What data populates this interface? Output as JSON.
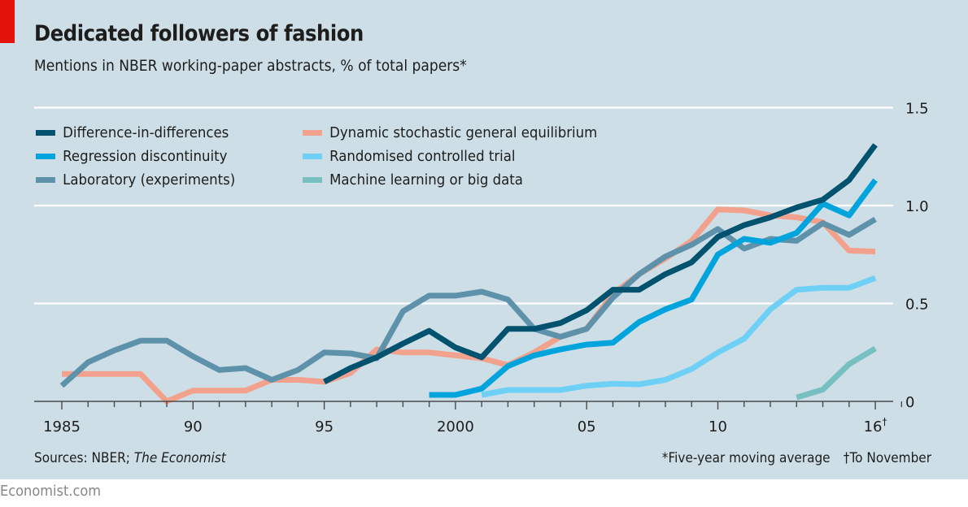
{
  "header": {
    "title": "Dedicated followers of fashion",
    "subtitle": "Mentions in NBER working-paper abstracts, % of total papers*"
  },
  "footer": {
    "source_prefix": "Sources: NBER; ",
    "source_italic": "The Economist",
    "note_1": "*Five-year moving average",
    "note_2": "†To November",
    "brand": "Economist.com"
  },
  "colors": {
    "background": "#cedee7",
    "accent_red": "#e3120b",
    "gridline": "#ffffff",
    "axis": "#4a4a4a"
  },
  "chart_data": {
    "type": "line",
    "title": "Dedicated followers of fashion",
    "subtitle": "Mentions in NBER working-paper abstracts, % of total papers*",
    "xlabel": "",
    "ylabel": "% of total papers",
    "xlim": [
      1984.5,
      2017.5
    ],
    "ylim": [
      0,
      1.5
    ],
    "y_ticks": [
      0,
      0.5,
      1.0,
      1.5
    ],
    "y_tick_labels": [
      "0",
      "0.5",
      "1.0",
      "1.5"
    ],
    "y_axis_side": "right",
    "x_ticks_labeled": [
      1985,
      1990,
      1995,
      2000,
      2005,
      2010,
      2016
    ],
    "x_tick_labels": [
      "1985",
      "90",
      "95",
      "2000",
      "05",
      "10",
      "16†"
    ],
    "grid": true,
    "legend_position": "top-left",
    "series": [
      {
        "name": "Difference-in-differences",
        "color": "#00526e",
        "x": [
          1995,
          1996,
          1997,
          1998,
          1999,
          2000,
          2001,
          2002,
          2003,
          2004,
          2005,
          2006,
          2007,
          2008,
          2009,
          2010,
          2011,
          2012,
          2013,
          2014,
          2015,
          2016
        ],
        "values": [
          0.1,
          0.17,
          0.225,
          0.295,
          0.36,
          0.275,
          0.225,
          0.37,
          0.37,
          0.4,
          0.465,
          0.57,
          0.57,
          0.65,
          0.71,
          0.84,
          0.9,
          0.94,
          0.99,
          1.03,
          1.13,
          1.31
        ]
      },
      {
        "name": "Regression discontinuity",
        "color": "#00a4dc",
        "x": [
          1999,
          2000,
          2001,
          2002,
          2003,
          2004,
          2005,
          2006,
          2007,
          2008,
          2009,
          2010,
          2011,
          2012,
          2013,
          2014,
          2015,
          2016
        ],
        "values": [
          0.033,
          0.033,
          0.065,
          0.18,
          0.235,
          0.265,
          0.29,
          0.3,
          0.405,
          0.47,
          0.52,
          0.75,
          0.83,
          0.81,
          0.86,
          1.01,
          0.95,
          1.13
        ]
      },
      {
        "name": "Laboratory (experiments)",
        "color": "#5e92aa",
        "x": [
          1985,
          1986,
          1987,
          1988,
          1989,
          1990,
          1991,
          1992,
          1993,
          1994,
          1995,
          1996,
          1997,
          1998,
          1999,
          2000,
          2001,
          2002,
          2003,
          2004,
          2005,
          2006,
          2007,
          2008,
          2009,
          2010,
          2011,
          2012,
          2013,
          2014,
          2015,
          2016
        ],
        "values": [
          0.08,
          0.2,
          0.26,
          0.31,
          0.31,
          0.23,
          0.16,
          0.17,
          0.11,
          0.16,
          0.25,
          0.245,
          0.22,
          0.46,
          0.54,
          0.54,
          0.56,
          0.52,
          0.37,
          0.33,
          0.37,
          0.53,
          0.65,
          0.74,
          0.8,
          0.88,
          0.78,
          0.83,
          0.82,
          0.91,
          0.85,
          0.93
        ]
      },
      {
        "name": "Dynamic stochastic general equilibrium",
        "color": "#f2a28c",
        "x": [
          1985,
          1986,
          1987,
          1988,
          1989,
          1990,
          1991,
          1992,
          1993,
          1994,
          1995,
          1996,
          1997,
          1998,
          1999,
          2000,
          2001,
          2002,
          2003,
          2004,
          2005,
          2006,
          2007,
          2008,
          2009,
          2010,
          2011,
          2012,
          2013,
          2014,
          2015,
          2016
        ],
        "values": [
          0.14,
          0.14,
          0.14,
          0.14,
          0.0,
          0.055,
          0.055,
          0.055,
          0.11,
          0.11,
          0.1,
          0.145,
          0.265,
          0.25,
          0.25,
          0.235,
          0.22,
          0.185,
          0.25,
          0.33,
          0.37,
          0.55,
          0.65,
          0.73,
          0.82,
          0.98,
          0.975,
          0.95,
          0.94,
          0.915,
          0.77,
          0.765
        ]
      },
      {
        "name": "Randomised controlled trial",
        "color": "#6fd0f6",
        "x": [
          2001,
          2002,
          2003,
          2004,
          2005,
          2006,
          2007,
          2008,
          2009,
          2010,
          2011,
          2012,
          2013,
          2014,
          2015,
          2016
        ],
        "values": [
          0.033,
          0.058,
          0.058,
          0.058,
          0.08,
          0.09,
          0.087,
          0.11,
          0.165,
          0.25,
          0.32,
          0.47,
          0.57,
          0.58,
          0.58,
          0.63
        ]
      },
      {
        "name": "Machine learning or big data",
        "color": "#76c0c1",
        "x": [
          2013,
          2014,
          2015,
          2016
        ],
        "values": [
          0.02,
          0.06,
          0.19,
          0.27
        ]
      }
    ]
  }
}
